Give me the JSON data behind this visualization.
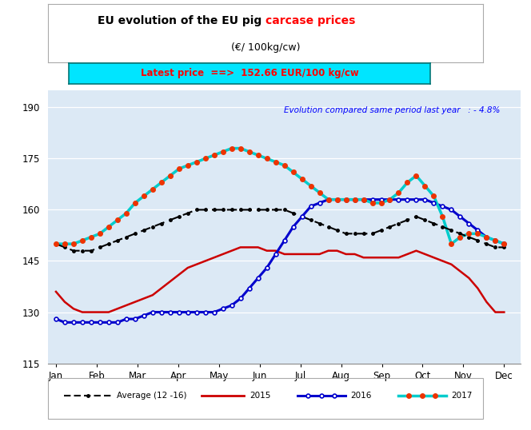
{
  "title_black": "EU evolution of the EU pig ",
  "title_red": "carcase prices",
  "subtitle": "(€/ 100kg/cw)",
  "latest_price_text": "Latest price  ==>  152.66 EUR/100 kg/cw",
  "annotation": "Evolution compared same period last year   : - 4.8%",
  "ylim": [
    115,
    195
  ],
  "yticks": [
    190,
    175,
    160,
    145,
    130,
    115
  ],
  "months": [
    "Jan",
    "Feb",
    "Mar",
    "Apr",
    "May",
    "Jun",
    "Jul",
    "Aug",
    "Sep",
    "Oct",
    "Nov",
    "Dec"
  ],
  "bg_color": "#dce9f5",
  "avg_color": "#000000",
  "y2015_color": "#cc0000",
  "y2016_color": "#0000cc",
  "y2017_color": "#00cccc",
  "avg_12_16": [
    150,
    149,
    148,
    148,
    148,
    149,
    150,
    151,
    152,
    153,
    154,
    155,
    156,
    157,
    158,
    159,
    160,
    160,
    160,
    160,
    160,
    160,
    160,
    160,
    160,
    160,
    160,
    159,
    158,
    157,
    156,
    155,
    154,
    153,
    153,
    153,
    153,
    154,
    155,
    156,
    157,
    158,
    157,
    156,
    155,
    154,
    153,
    152,
    151,
    150,
    149,
    149
  ],
  "y2015": [
    136,
    133,
    131,
    130,
    130,
    130,
    130,
    131,
    132,
    133,
    134,
    135,
    137,
    139,
    141,
    143,
    144,
    145,
    146,
    147,
    148,
    149,
    149,
    149,
    148,
    148,
    147,
    147,
    147,
    147,
    147,
    148,
    148,
    147,
    147,
    146,
    146,
    146,
    146,
    146,
    147,
    148,
    147,
    146,
    145,
    144,
    142,
    140,
    137,
    133,
    130,
    130
  ],
  "y2016": [
    128,
    127,
    127,
    127,
    127,
    127,
    127,
    127,
    128,
    128,
    129,
    130,
    130,
    130,
    130,
    130,
    130,
    130,
    130,
    131,
    132,
    134,
    137,
    140,
    143,
    147,
    151,
    155,
    158,
    161,
    162,
    163,
    163,
    163,
    163,
    163,
    163,
    163,
    163,
    163,
    163,
    163,
    163,
    162,
    161,
    160,
    158,
    156,
    154,
    152,
    151,
    150
  ],
  "y2017": [
    150,
    150,
    150,
    151,
    152,
    153,
    155,
    157,
    159,
    162,
    164,
    166,
    168,
    170,
    172,
    173,
    174,
    175,
    176,
    177,
    178,
    178,
    177,
    176,
    175,
    174,
    173,
    171,
    169,
    167,
    165,
    163,
    163,
    163,
    163,
    163,
    162,
    162,
    163,
    165,
    168,
    170,
    167,
    164,
    158,
    150,
    152,
    153,
    153,
    152,
    151,
    150
  ]
}
